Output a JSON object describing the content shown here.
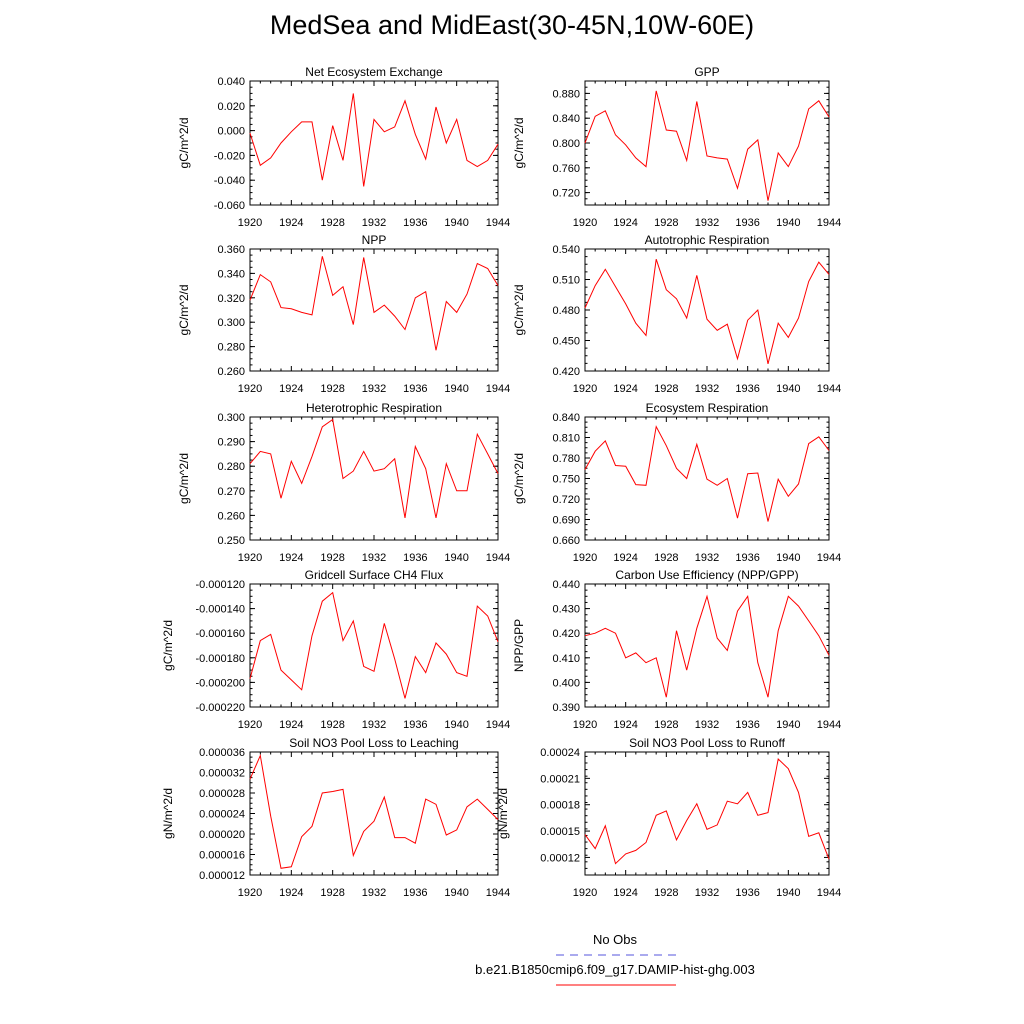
{
  "figure": {
    "title": "MedSea and MidEast(30-45N,10W-60E)",
    "series_color": "#ff0000",
    "obs_color": "#5555dd"
  },
  "legend": {
    "obs_label": "No Obs",
    "model_label": "b.e21.B1850cmip6.f09_g17.DAMIP-hist-ghg.003"
  },
  "chart_data": [
    {
      "type": "line",
      "title": "Net Ecosystem Exchange",
      "ylabel": "gC/m^2/d",
      "ylim": [
        -0.06,
        0.04
      ],
      "xlim": [
        1920,
        1944
      ],
      "yticks": [
        "0.040",
        "0.020",
        "0.000",
        "-0.020",
        "-0.040",
        "-0.060"
      ],
      "ytick_values": [
        0.04,
        0.02,
        0.0,
        -0.02,
        -0.04,
        -0.06
      ],
      "xticks": [
        1920,
        1924,
        1928,
        1932,
        1936,
        1940,
        1944
      ],
      "x": [
        1920,
        1921,
        1922,
        1923,
        1924,
        1925,
        1926,
        1927,
        1928,
        1929,
        1930,
        1931,
        1932,
        1933,
        1934,
        1935,
        1936,
        1937,
        1938,
        1939,
        1940,
        1941,
        1942,
        1943,
        1944
      ],
      "series": [
        {
          "values": [
            -0.002,
            -0.028,
            -0.022,
            -0.01,
            -0.001,
            0.007,
            0.007,
            -0.04,
            0.004,
            -0.024,
            0.03,
            -0.045,
            0.009,
            -0.001,
            0.003,
            0.024,
            -0.003,
            -0.023,
            0.019,
            -0.01,
            0.009,
            -0.024,
            -0.029,
            -0.024,
            -0.011
          ]
        }
      ]
    },
    {
      "type": "line",
      "title": "GPP",
      "ylabel": "gC/m^2/d",
      "ylim": [
        0.7,
        0.9
      ],
      "xlim": [
        1920,
        1944
      ],
      "yticks": [
        "0.880",
        "0.840",
        "0.800",
        "0.760",
        "0.720"
      ],
      "ytick_values": [
        0.88,
        0.84,
        0.8,
        0.76,
        0.72
      ],
      "xticks": [
        1920,
        1924,
        1928,
        1932,
        1936,
        1940,
        1944
      ],
      "x": [
        1920,
        1921,
        1922,
        1923,
        1924,
        1925,
        1926,
        1927,
        1928,
        1929,
        1930,
        1931,
        1932,
        1933,
        1934,
        1935,
        1936,
        1937,
        1938,
        1939,
        1940,
        1941,
        1942,
        1943,
        1944
      ],
      "series": [
        {
          "values": [
            0.8,
            0.843,
            0.852,
            0.813,
            0.797,
            0.776,
            0.762,
            0.884,
            0.821,
            0.819,
            0.772,
            0.867,
            0.779,
            0.776,
            0.774,
            0.727,
            0.79,
            0.805,
            0.707,
            0.784,
            0.762,
            0.795,
            0.855,
            0.868,
            0.842
          ]
        }
      ]
    },
    {
      "type": "line",
      "title": "NPP",
      "ylabel": "gC/m^2/d",
      "ylim": [
        0.26,
        0.36
      ],
      "xlim": [
        1920,
        1944
      ],
      "yticks": [
        "0.360",
        "0.340",
        "0.320",
        "0.300",
        "0.280",
        "0.260"
      ],
      "ytick_values": [
        0.36,
        0.34,
        0.32,
        0.3,
        0.28,
        0.26
      ],
      "xticks": [
        1920,
        1924,
        1928,
        1932,
        1936,
        1940,
        1944
      ],
      "x": [
        1920,
        1921,
        1922,
        1923,
        1924,
        1925,
        1926,
        1927,
        1928,
        1929,
        1930,
        1931,
        1932,
        1933,
        1934,
        1935,
        1936,
        1937,
        1938,
        1939,
        1940,
        1941,
        1942,
        1943,
        1944
      ],
      "series": [
        {
          "values": [
            0.318,
            0.339,
            0.333,
            0.312,
            0.311,
            0.308,
            0.306,
            0.354,
            0.322,
            0.329,
            0.298,
            0.353,
            0.308,
            0.314,
            0.305,
            0.294,
            0.32,
            0.325,
            0.277,
            0.317,
            0.308,
            0.323,
            0.348,
            0.344,
            0.33
          ]
        }
      ]
    },
    {
      "type": "line",
      "title": "Autotrophic Respiration",
      "ylabel": "gC/m^2/d",
      "ylim": [
        0.42,
        0.54
      ],
      "xlim": [
        1920,
        1944
      ],
      "yticks": [
        "0.540",
        "0.510",
        "0.480",
        "0.450",
        "0.420"
      ],
      "ytick_values": [
        0.54,
        0.51,
        0.48,
        0.45,
        0.42
      ],
      "xticks": [
        1920,
        1924,
        1928,
        1932,
        1936,
        1940,
        1944
      ],
      "x": [
        1920,
        1921,
        1922,
        1923,
        1924,
        1925,
        1926,
        1927,
        1928,
        1929,
        1930,
        1931,
        1932,
        1933,
        1934,
        1935,
        1936,
        1937,
        1938,
        1939,
        1940,
        1941,
        1942,
        1943,
        1944
      ],
      "series": [
        {
          "values": [
            0.482,
            0.504,
            0.52,
            0.503,
            0.486,
            0.467,
            0.455,
            0.53,
            0.5,
            0.491,
            0.472,
            0.514,
            0.471,
            0.46,
            0.466,
            0.432,
            0.47,
            0.48,
            0.427,
            0.467,
            0.453,
            0.472,
            0.508,
            0.527,
            0.515
          ]
        }
      ]
    },
    {
      "type": "line",
      "title": "Heterotrophic Respiration",
      "ylabel": "gC/m^2/d",
      "ylim": [
        0.25,
        0.3
      ],
      "xlim": [
        1920,
        1944
      ],
      "yticks": [
        "0.300",
        "0.290",
        "0.280",
        "0.270",
        "0.260",
        "0.250"
      ],
      "ytick_values": [
        0.3,
        0.29,
        0.28,
        0.27,
        0.26,
        0.25
      ],
      "xticks": [
        1920,
        1924,
        1928,
        1932,
        1936,
        1940,
        1944
      ],
      "x": [
        1920,
        1921,
        1922,
        1923,
        1924,
        1925,
        1926,
        1927,
        1928,
        1929,
        1930,
        1931,
        1932,
        1933,
        1934,
        1935,
        1936,
        1937,
        1938,
        1939,
        1940,
        1941,
        1942,
        1943,
        1944
      ],
      "series": [
        {
          "values": [
            0.281,
            0.286,
            0.285,
            0.267,
            0.282,
            0.273,
            0.284,
            0.296,
            0.299,
            0.275,
            0.278,
            0.286,
            0.278,
            0.279,
            0.283,
            0.259,
            0.288,
            0.279,
            0.259,
            0.281,
            0.27,
            0.27,
            0.293,
            0.285,
            0.277
          ]
        }
      ]
    },
    {
      "type": "line",
      "title": "Ecosystem Respiration",
      "ylabel": "gC/m^2/d",
      "ylim": [
        0.66,
        0.84
      ],
      "xlim": [
        1920,
        1944
      ],
      "yticks": [
        "0.840",
        "0.810",
        "0.780",
        "0.750",
        "0.720",
        "0.690",
        "0.660"
      ],
      "ytick_values": [
        0.84,
        0.81,
        0.78,
        0.75,
        0.72,
        0.69,
        0.66
      ],
      "xticks": [
        1920,
        1924,
        1928,
        1932,
        1936,
        1940,
        1944
      ],
      "x": [
        1920,
        1921,
        1922,
        1923,
        1924,
        1925,
        1926,
        1927,
        1928,
        1929,
        1930,
        1931,
        1932,
        1933,
        1934,
        1935,
        1936,
        1937,
        1938,
        1939,
        1940,
        1941,
        1942,
        1943,
        1944
      ],
      "series": [
        {
          "values": [
            0.763,
            0.79,
            0.805,
            0.769,
            0.768,
            0.741,
            0.74,
            0.826,
            0.798,
            0.765,
            0.75,
            0.8,
            0.749,
            0.74,
            0.75,
            0.692,
            0.757,
            0.758,
            0.687,
            0.749,
            0.724,
            0.742,
            0.801,
            0.811,
            0.791
          ]
        }
      ]
    },
    {
      "type": "line",
      "title": "Gridcell Surface CH4 Flux",
      "ylabel": "gC/m^2/d",
      "ylim": [
        -0.00022,
        -0.00012
      ],
      "xlim": [
        1920,
        1944
      ],
      "yticks": [
        "-0.000120",
        "-0.000140",
        "-0.000160",
        "-0.000180",
        "-0.000200",
        "-0.000220"
      ],
      "ytick_values": [
        -0.00012,
        -0.00014,
        -0.00016,
        -0.00018,
        -0.0002,
        -0.00022
      ],
      "xticks": [
        1920,
        1924,
        1928,
        1932,
        1936,
        1940,
        1944
      ],
      "x": [
        1920,
        1921,
        1922,
        1923,
        1924,
        1925,
        1926,
        1927,
        1928,
        1929,
        1930,
        1931,
        1932,
        1933,
        1934,
        1935,
        1936,
        1937,
        1938,
        1939,
        1940,
        1941,
        1942,
        1943,
        1944
      ],
      "series": [
        {
          "values": [
            -0.000197,
            -0.000166,
            -0.000161,
            -0.00019,
            -0.000198,
            -0.000206,
            -0.000162,
            -0.000134,
            -0.000127,
            -0.000166,
            -0.00015,
            -0.000187,
            -0.000191,
            -0.000152,
            -0.000181,
            -0.000213,
            -0.000179,
            -0.000192,
            -0.000168,
            -0.000177,
            -0.000192,
            -0.000195,
            -0.000138,
            -0.000146,
            -0.000167
          ]
        }
      ]
    },
    {
      "type": "line",
      "title": "Carbon Use Efficiency (NPP/GPP)",
      "ylabel": "NPP/GPP",
      "ylim": [
        0.39,
        0.44
      ],
      "xlim": [
        1920,
        1944
      ],
      "yticks": [
        "0.440",
        "0.430",
        "0.420",
        "0.410",
        "0.400",
        "0.390"
      ],
      "ytick_values": [
        0.44,
        0.43,
        0.42,
        0.41,
        0.4,
        0.39
      ],
      "xticks": [
        1920,
        1924,
        1928,
        1932,
        1936,
        1940,
        1944
      ],
      "x": [
        1920,
        1921,
        1922,
        1923,
        1924,
        1925,
        1926,
        1927,
        1928,
        1929,
        1930,
        1931,
        1932,
        1933,
        1934,
        1935,
        1936,
        1937,
        1938,
        1939,
        1940,
        1941,
        1942,
        1943,
        1944
      ],
      "series": [
        {
          "values": [
            0.419,
            0.42,
            0.422,
            0.42,
            0.41,
            0.412,
            0.408,
            0.41,
            0.394,
            0.421,
            0.405,
            0.422,
            0.435,
            0.418,
            0.413,
            0.429,
            0.435,
            0.408,
            0.394,
            0.421,
            0.435,
            0.431,
            0.425,
            0.419,
            0.411
          ]
        }
      ]
    },
    {
      "type": "line",
      "title": "Soil NO3 Pool Loss to Leaching",
      "ylabel": "gN/m^2/d",
      "ylim": [
        1.2e-05,
        3.6e-05
      ],
      "xlim": [
        1920,
        1944
      ],
      "yticks": [
        "0.000036",
        "0.000032",
        "0.000028",
        "0.000024",
        "0.000020",
        "0.000016",
        "0.000012"
      ],
      "ytick_values": [
        3.6e-05,
        3.2e-05,
        2.8e-05,
        2.4e-05,
        2e-05,
        1.6e-05,
        1.2e-05
      ],
      "xticks": [
        1920,
        1924,
        1928,
        1932,
        1936,
        1940,
        1944
      ],
      "x": [
        1920,
        1921,
        1922,
        1923,
        1924,
        1925,
        1926,
        1927,
        1928,
        1929,
        1930,
        1931,
        1932,
        1933,
        1934,
        1935,
        1936,
        1937,
        1938,
        1939,
        1940,
        1941,
        1942,
        1943,
        1944
      ],
      "series": [
        {
          "values": [
            3.07e-05,
            3.53e-05,
            2.35e-05,
            1.33e-05,
            1.36e-05,
            1.95e-05,
            2.15e-05,
            2.8e-05,
            2.83e-05,
            2.87e-05,
            1.58e-05,
            2.05e-05,
            2.25e-05,
            2.72e-05,
            1.93e-05,
            1.93e-05,
            1.82e-05,
            2.68e-05,
            2.58e-05,
            1.98e-05,
            2.08e-05,
            2.53e-05,
            2.68e-05,
            2.48e-05,
            2.28e-05
          ]
        }
      ]
    },
    {
      "type": "line",
      "title": "Soil NO3 Pool Loss to Runoff",
      "ylabel": "gN/m^2/d",
      "ylim": [
        0.0001,
        0.00024
      ],
      "xlim": [
        1920,
        1944
      ],
      "yticks": [
        "0.00024",
        "0.00021",
        "0.00018",
        "0.00015",
        "0.00012"
      ],
      "ytick_values": [
        0.00024,
        0.00021,
        0.00018,
        0.00015,
        0.00012
      ],
      "xticks": [
        1920,
        1924,
        1928,
        1932,
        1936,
        1940,
        1944
      ],
      "x": [
        1920,
        1921,
        1922,
        1923,
        1924,
        1925,
        1926,
        1927,
        1928,
        1929,
        1930,
        1931,
        1932,
        1933,
        1934,
        1935,
        1936,
        1937,
        1938,
        1939,
        1940,
        1941,
        1942,
        1943,
        1944
      ],
      "series": [
        {
          "values": [
            0.000146,
            0.00013,
            0.000156,
            0.000113,
            0.000124,
            0.000128,
            0.000137,
            0.000168,
            0.000173,
            0.00014,
            0.000162,
            0.000181,
            0.000152,
            0.000157,
            0.000184,
            0.000181,
            0.000194,
            0.000168,
            0.000171,
            0.000232,
            0.000221,
            0.000194,
            0.000144,
            0.000148,
            0.000118
          ]
        }
      ]
    }
  ]
}
